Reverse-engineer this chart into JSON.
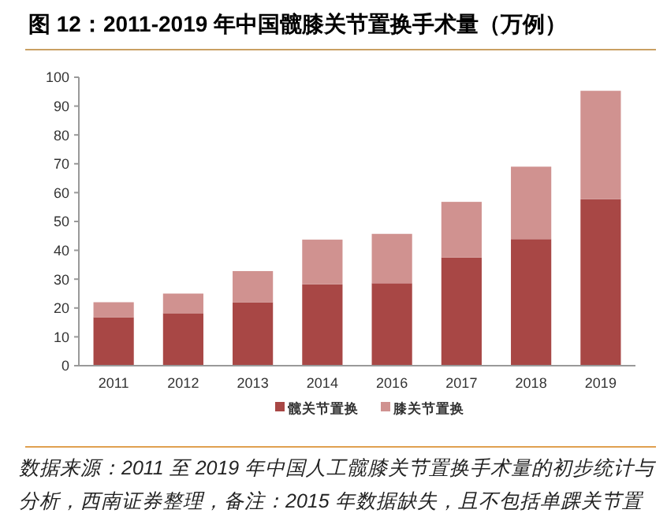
{
  "chart_data": {
    "type": "bar",
    "title": "图 12：2011-2019 年中国髋膝关节置换手术量（万例）",
    "categories": [
      "2011",
      "2012",
      "2013",
      "2014",
      "2016",
      "2017",
      "2018",
      "2019"
    ],
    "stacked": true,
    "series": [
      {
        "name": "髋关节置换",
        "color": "#a84745",
        "values": [
          16.8,
          18.2,
          22.0,
          28.2,
          28.6,
          37.5,
          43.9,
          57.7
        ]
      },
      {
        "name": "膝关节置换",
        "color": "#d09290",
        "values": [
          5.2,
          6.8,
          10.8,
          15.5,
          17.1,
          19.3,
          25.1,
          37.6
        ]
      }
    ],
    "ylim": [
      0,
      100
    ],
    "yticks": [
      0,
      10,
      20,
      30,
      40,
      50,
      60,
      70,
      80,
      90,
      100
    ],
    "grid": false,
    "legend": "bottom",
    "annotations": [
      "数据来源：2011 至 2019 年中国人工髋膝关节置换手术量的初步统计与分析，西南证券整理，备注：2015 年数据缺失，且不包括单踝关节置"
    ]
  }
}
